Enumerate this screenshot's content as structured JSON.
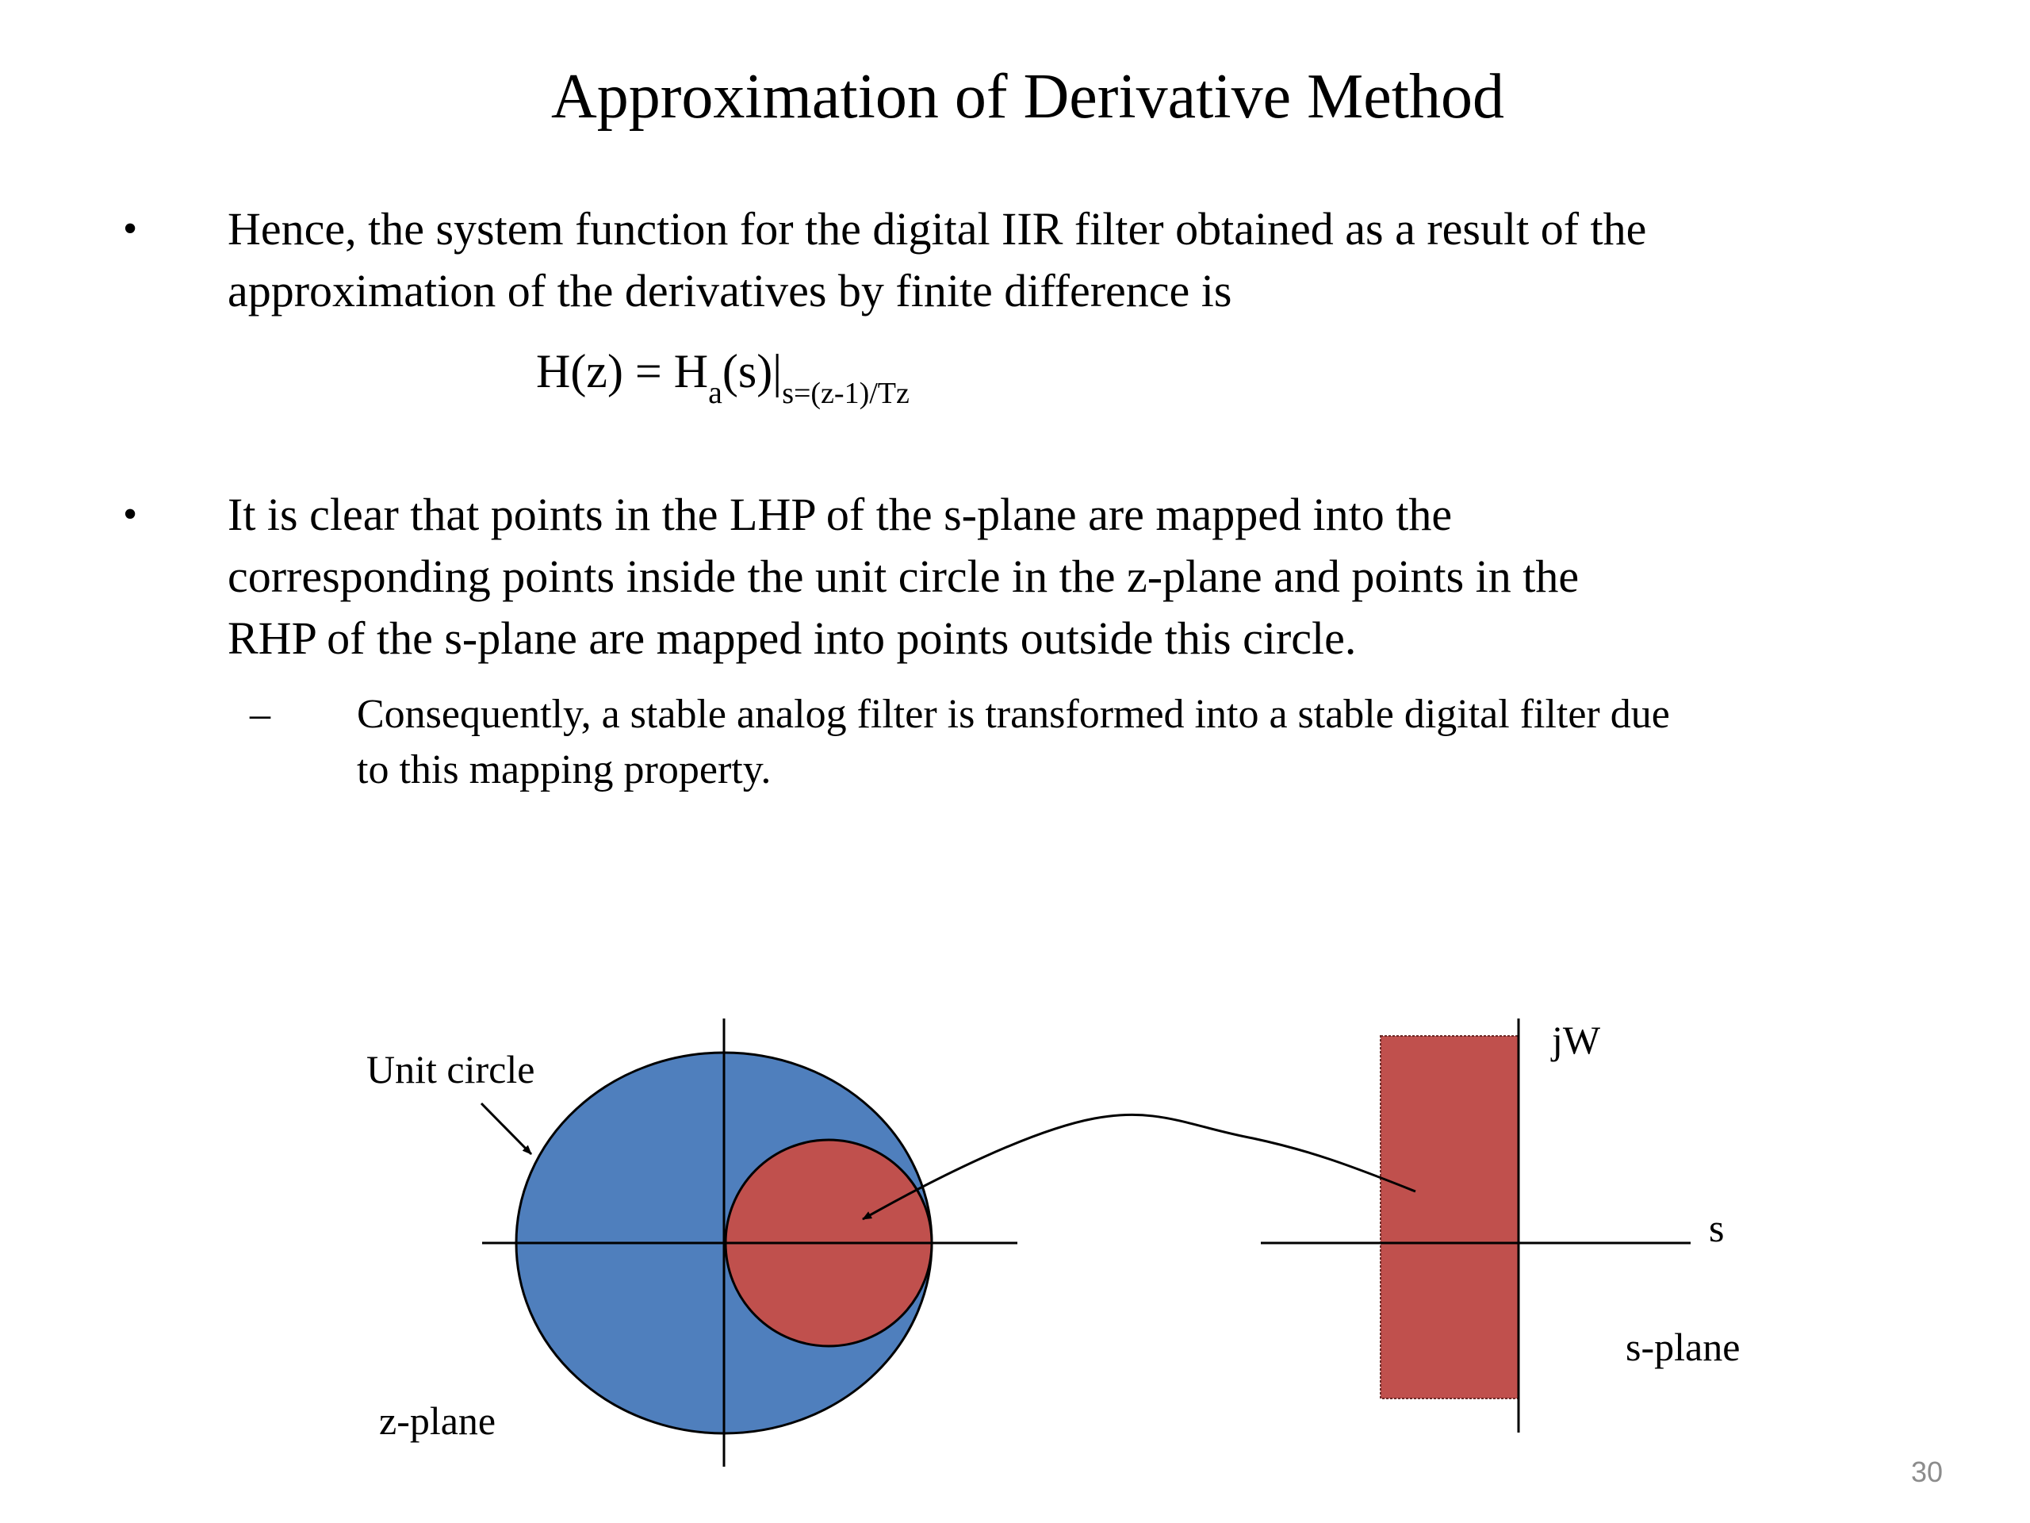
{
  "slide": {
    "title": "Approximation of Derivative Method",
    "bullet_char": "•",
    "dash_char": "–",
    "bullet1": {
      "lines": [
        "Hence, the system function for the digital IIR filter obtained as a result of the",
        "approximation of the derivatives by finite difference is"
      ]
    },
    "formula": {
      "lhs": "H(z) = H",
      "sub_a": "a",
      "mid": "(s)|",
      "sub_s": "s=(z-1)/Tz"
    },
    "bullet2": {
      "lines": [
        "It is clear that points in the LHP of the s-plane are mapped into the",
        "corresponding points inside the unit circle in the z-plane and points in the",
        "RHP of the s-plane are mapped into points outside this circle."
      ]
    },
    "sub_bullet": {
      "lines": [
        "Consequently, a stable analog filter is transformed into a stable digital filter due",
        "to this mapping property."
      ]
    },
    "page_number": "30"
  },
  "diagram": {
    "labels": {
      "unit_circle": "Unit circle",
      "z_plane": "z-plane",
      "jw_axis": "jW",
      "s_axis": "s",
      "s_plane": "s-plane"
    },
    "colors": {
      "unit_circle_fill": "#4f7fbd",
      "mapped_region_fill": "#c0504d",
      "stroke": "#000000"
    }
  }
}
